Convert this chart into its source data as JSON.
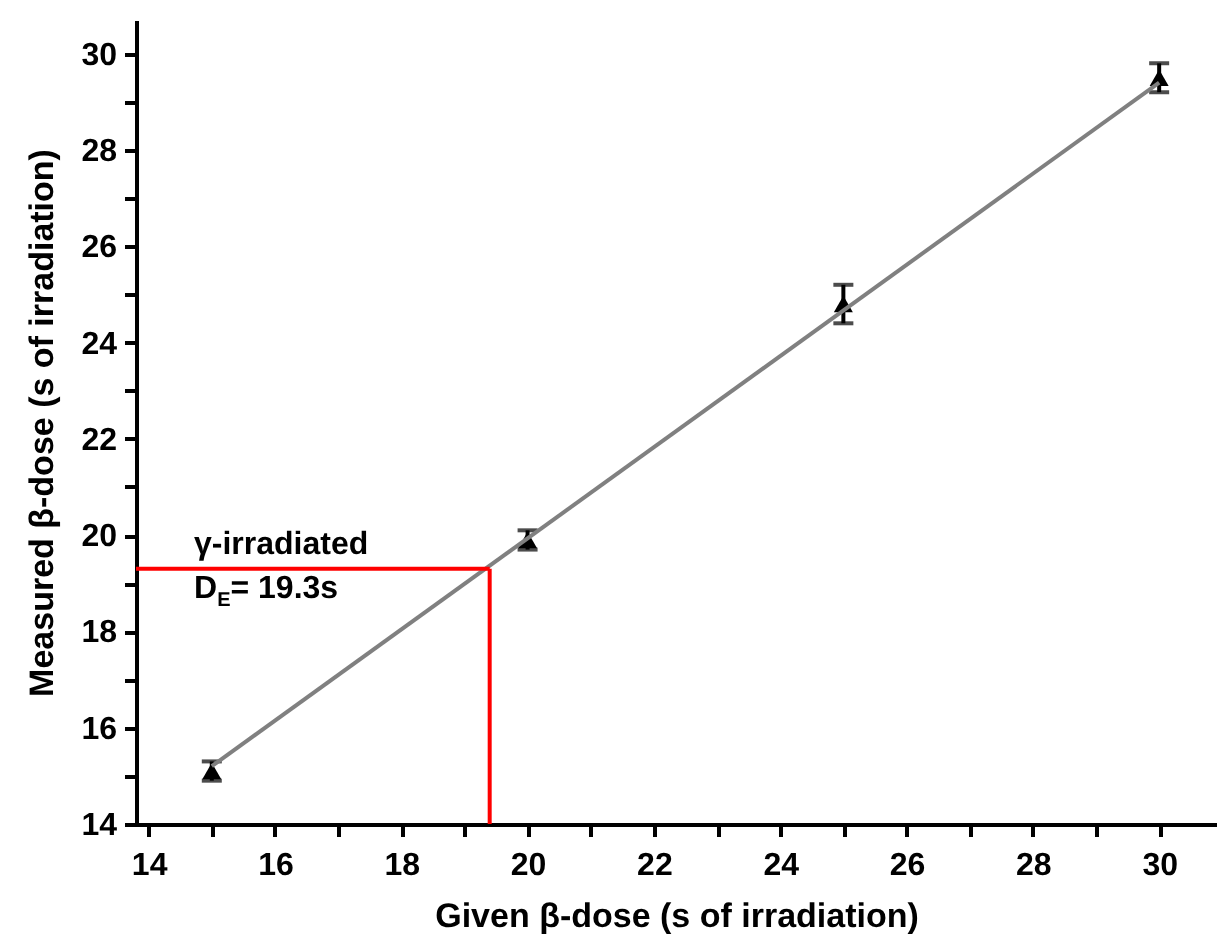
{
  "chart_data": {
    "type": "scatter",
    "xlabel": "Given β-dose (s of irradiation)",
    "ylabel": "Measured β-dose (s of irradiation)",
    "xlim": [
      13.8,
      30.9
    ],
    "ylim": [
      14,
      30.7
    ],
    "xticks": [
      14,
      {
        "value": 15,
        "label": null
      },
      16,
      {
        "value": 17,
        "label": null
      },
      18,
      {
        "value": 19,
        "label": null
      },
      20,
      {
        "value": 21,
        "label": null
      },
      22,
      {
        "value": 23,
        "label": null
      },
      24,
      {
        "value": 25,
        "label": null
      },
      26,
      {
        "value": 27,
        "label": null
      },
      28,
      {
        "value": 29,
        "label": null
      },
      30
    ],
    "yticks": [
      14,
      {
        "value": 15,
        "label": null
      },
      16,
      {
        "value": 17,
        "label": null
      },
      18,
      {
        "value": 19,
        "label": null
      },
      20,
      {
        "value": 21,
        "label": null
      },
      22,
      {
        "value": 23,
        "label": null
      },
      24,
      {
        "value": 25,
        "label": null
      },
      26,
      {
        "value": 27,
        "label": null
      },
      28,
      {
        "value": 29,
        "label": null
      },
      30
    ],
    "series": [
      {
        "marker": "triangle",
        "color": "#000000",
        "x": [
          15,
          20,
          25,
          30
        ],
        "values": [
          15.1,
          19.9,
          24.8,
          29.5
        ],
        "errors": [
          0.2,
          0.2,
          0.4,
          0.3
        ]
      },
      {
        "type": "line",
        "color": "#808080",
        "x": [
          15,
          30
        ],
        "values": [
          15.2,
          29.4
        ]
      }
    ],
    "ref_lines": [
      {
        "axis": "y",
        "value": 19.3,
        "color": "#ff0000"
      },
      {
        "axis": "x",
        "value": 19.4,
        "color": "#ff0000"
      }
    ],
    "annotations": [
      "γ-irradiated",
      "D$_{E}$= 19.3s"
    ]
  }
}
